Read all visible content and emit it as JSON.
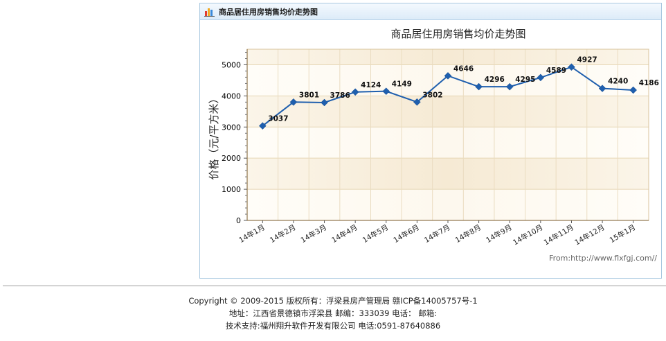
{
  "panel": {
    "title": "商品居住用房销售均价走势图",
    "icon": "bar-chart-icon"
  },
  "chart_data": {
    "type": "line",
    "title": "商品居住用房销售均价走势图",
    "ylabel": "价格（元/平方米）",
    "xlabel": "",
    "categories": [
      "14年1月",
      "14年2月",
      "14年3月",
      "14年4月",
      "14年5月",
      "14年6月",
      "14年7月",
      "14年8月",
      "14年9月",
      "14年10月",
      "14年11月",
      "14年12月",
      "15年1月"
    ],
    "values": [
      3037,
      3801,
      3786,
      4124,
      4149,
      3802,
      4646,
      4296,
      4295,
      4589,
      4927,
      4240,
      4186
    ],
    "ylim": [
      0,
      5500
    ],
    "yticks": [
      0,
      1000,
      2000,
      3000,
      4000,
      5000
    ],
    "grid": true,
    "line_color": "#1f5fae",
    "marker": "diamond",
    "source": "From:http://www.flxfgj.com//"
  },
  "footer": {
    "line1": "Copyright © 2009-2015 版权所有：浮梁县房产管理局 赣ICP备14005757号-1",
    "line2": "地址：江西省景德镇市浮梁县 邮编：333039 电话： 邮箱:",
    "line3_prefix": "技术支持:",
    "line3_company": "福州翔升软件开发有限公司",
    "line3_phone": " 电话:0591-87640886"
  }
}
